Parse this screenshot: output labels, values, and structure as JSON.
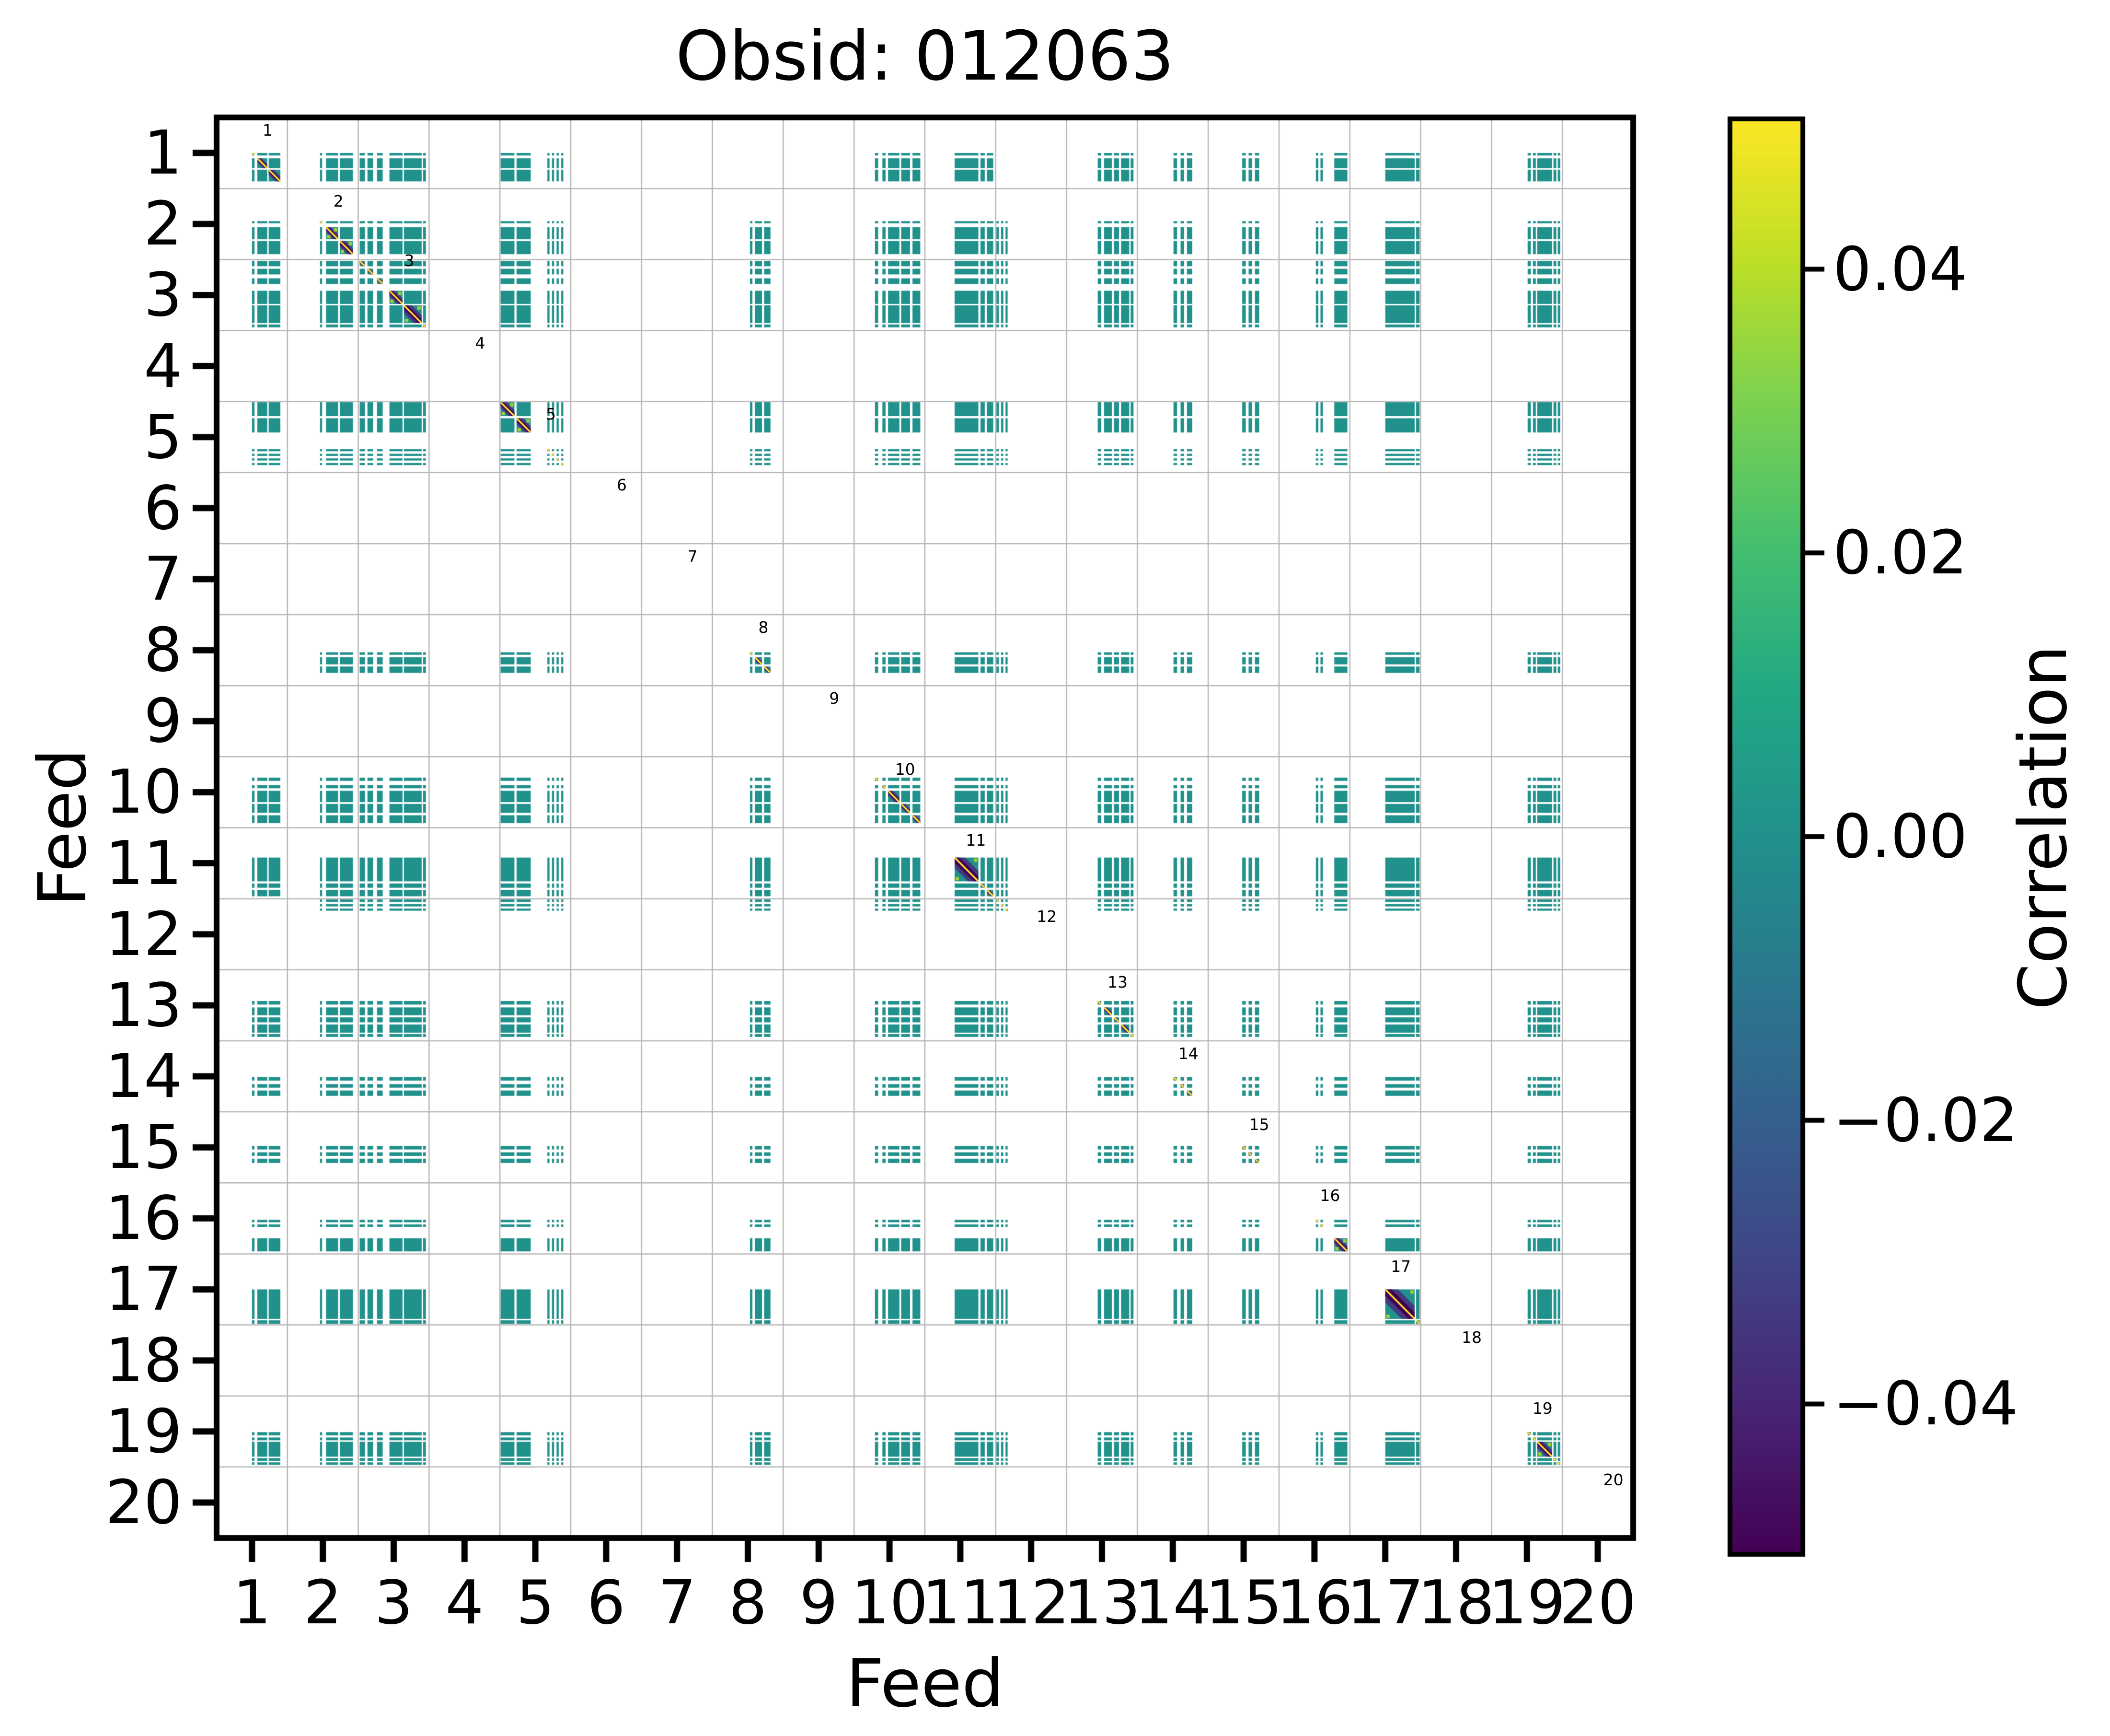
{
  "title": "Obsid: 012063",
  "chart_data": {
    "type": "heatmap",
    "title": "Obsid: 012063",
    "xlabel": "Feed",
    "ylabel": "Feed",
    "x_ticks": [
      "1",
      "2",
      "3",
      "4",
      "5",
      "6",
      "7",
      "8",
      "9",
      "10",
      "11",
      "12",
      "13",
      "14",
      "15",
      "16",
      "17",
      "18",
      "19",
      "20"
    ],
    "y_ticks": [
      "1",
      "2",
      "3",
      "4",
      "5",
      "6",
      "7",
      "8",
      "9",
      "10",
      "11",
      "12",
      "13",
      "14",
      "15",
      "16",
      "17",
      "18",
      "19",
      "20"
    ],
    "xlim": [
      0.5,
      20.5
    ],
    "ylim": [
      0.5,
      20.5
    ],
    "grid": true,
    "diag_cell_labels": [
      "1",
      "2",
      "3",
      "4",
      "5",
      "6",
      "7",
      "8",
      "9",
      "10",
      "11",
      "12",
      "13",
      "14",
      "15",
      "16",
      "17",
      "18",
      "19",
      "20"
    ],
    "colorbar": {
      "label": "Correlation",
      "tick_labels": [
        "0.04",
        "0.02",
        "0.00",
        "−0.02",
        "−0.04"
      ],
      "tick_values": [
        0.04,
        0.02,
        0.0,
        -0.02,
        -0.04
      ],
      "vmin": -0.0506,
      "vmax": 0.0506,
      "colormap": "viridis"
    },
    "active_feeds": [
      1,
      2,
      3,
      5,
      8,
      10,
      11,
      12,
      13,
      14,
      15,
      16,
      17,
      19
    ],
    "inactive_feeds": [
      4,
      6,
      7,
      9,
      18,
      20
    ],
    "excluded_pairs": [
      [
        1,
        8
      ],
      [
        8,
        1
      ],
      [
        1,
        12
      ],
      [
        12,
        1
      ]
    ],
    "offdiagonal_correlation_approx": 0.0,
    "diagonal_correlation": 1.0,
    "feed_channel_bands": {
      "1": [
        [
          0.5,
          0.535
        ],
        [
          0.575,
          0.715
        ],
        [
          0.735,
          0.9
        ]
      ],
      "2": [
        [
          0.46,
          0.49
        ],
        [
          0.545,
          0.715
        ],
        [
          0.74,
          0.925
        ]
      ],
      "3": [
        [
          0.02,
          0.095
        ],
        [
          0.13,
          0.21
        ],
        [
          0.265,
          0.345
        ],
        [
          0.44,
          0.625
        ],
        [
          0.645,
          0.895
        ],
        [
          0.915,
          0.955
        ]
      ],
      "4": [],
      "5": [
        [
          0.01,
          0.205
        ],
        [
          0.235,
          0.435
        ],
        [
          0.67,
          0.7
        ],
        [
          0.735,
          0.765
        ],
        [
          0.8,
          0.83
        ],
        [
          0.865,
          0.895
        ]
      ],
      "6": [],
      "7": [],
      "8": [
        [
          0.53,
          0.565
        ],
        [
          0.6,
          0.7
        ],
        [
          0.73,
          0.82
        ]
      ],
      "9": [],
      "10": [
        [
          0.295,
          0.34
        ],
        [
          0.4,
          0.445
        ],
        [
          0.48,
          0.64
        ],
        [
          0.665,
          0.79
        ],
        [
          0.825,
          0.935
        ]
      ],
      "11": [
        [
          0.42,
          0.755
        ],
        [
          0.785,
          0.845
        ],
        [
          0.875,
          0.965
        ]
      ],
      "12": [
        [
          0.01,
          0.045
        ],
        [
          0.075,
          0.108
        ],
        [
          0.138,
          0.168
        ]
      ],
      "13": [
        [
          0.44,
          0.49
        ],
        [
          0.53,
          0.64
        ],
        [
          0.67,
          0.74
        ],
        [
          0.77,
          0.885
        ],
        [
          0.905,
          0.945
        ]
      ],
      "14": [
        [
          0.51,
          0.56
        ],
        [
          0.61,
          0.66
        ],
        [
          0.7,
          0.775
        ]
      ],
      "15": [
        [
          0.48,
          0.53
        ],
        [
          0.57,
          0.62
        ],
        [
          0.66,
          0.72
        ]
      ],
      "16": [
        [
          0.52,
          0.555
        ],
        [
          0.585,
          0.62
        ],
        [
          0.78,
          0.965
        ]
      ],
      "17": [
        [
          0.5,
          0.915
        ],
        [
          0.935,
          0.985
        ]
      ],
      "18": [],
      "19": [
        [
          0.51,
          0.555
        ],
        [
          0.585,
          0.625
        ],
        [
          0.645,
          0.855
        ],
        [
          0.875,
          0.915
        ],
        [
          0.935,
          0.97
        ]
      ],
      "20": []
    },
    "diag_label_offsets": {
      "default": [
        0.72,
        0.18
      ],
      "3": [
        0.72,
        0.02
      ],
      "12": [
        0.72,
        0.25
      ]
    }
  },
  "colors": {
    "background": "#ffffff",
    "block_teal": "#21918c",
    "diag_line_yellow": "#fde725",
    "diag_core_purple": "#440154",
    "diag_mid_purple": "#46327e",
    "diag_speckle_green": "#c2df23",
    "grid_gray": "#b6b6b6",
    "axis_black": "#000000",
    "viridis_stops_top_to_bottom": [
      "#fde725",
      "#bddf26",
      "#7ad151",
      "#44bf70",
      "#22a884",
      "#21918c",
      "#2a788e",
      "#355f8d",
      "#414487",
      "#482475",
      "#440154"
    ]
  }
}
